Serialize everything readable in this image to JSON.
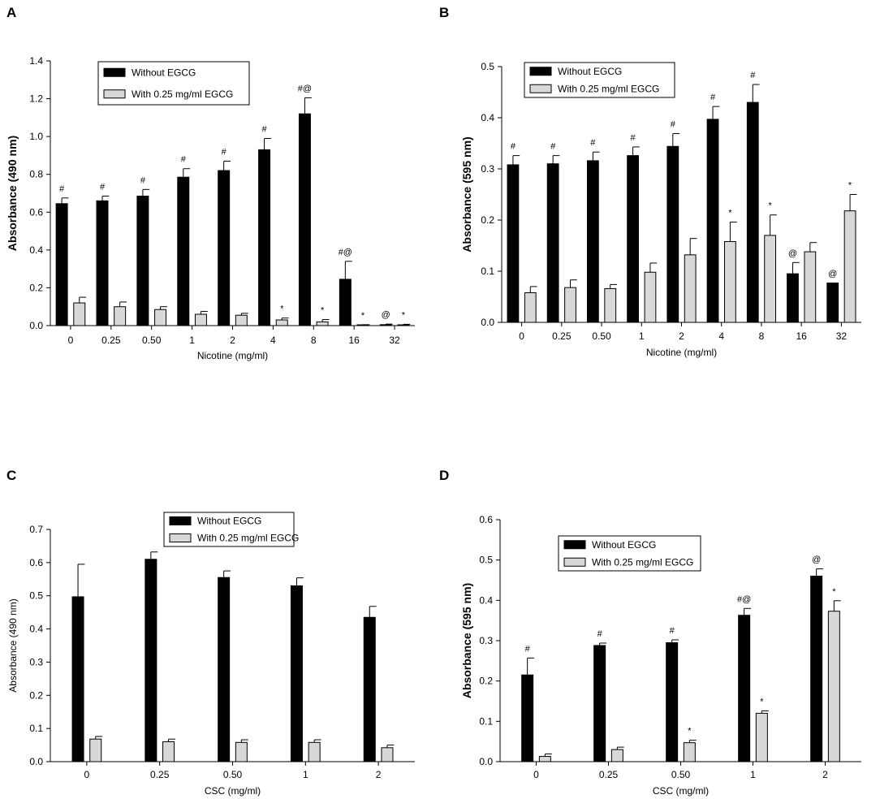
{
  "legend": {
    "without_label": "Without EGCG",
    "with_label": "With 0.25 mg/ml EGCG"
  },
  "colors": {
    "without_fill": "#000000",
    "with_fill": "#d8d8d8",
    "axis": "#000000"
  },
  "chart_data": [
    {
      "panel": "A",
      "type": "bar",
      "ylabel": "Absorbance (490 nm)",
      "xlabel": "Nicotine (mg/ml)",
      "ylim": [
        0,
        1.4
      ],
      "yticks": [
        "0.0",
        "0.2",
        "0.4",
        "0.6",
        "0.8",
        "1.0",
        "1.2",
        "1.4"
      ],
      "categories": [
        "0",
        "0.25",
        "0.50",
        "1",
        "2",
        "4",
        "8",
        "16",
        "32"
      ],
      "legend_position": "top-left",
      "series": [
        {
          "name": "Without EGCG",
          "values": [
            0.645,
            0.66,
            0.685,
            0.785,
            0.82,
            0.93,
            1.12,
            0.245,
            0.005
          ],
          "errors": [
            0.03,
            0.025,
            0.035,
            0.045,
            0.05,
            0.06,
            0.085,
            0.095,
            0.003
          ],
          "annotations": [
            "#",
            "#",
            "#",
            "#",
            "#",
            "#",
            "#@",
            "#@",
            "@"
          ]
        },
        {
          "name": "With 0.25 mg/ml EGCG",
          "values": [
            0.12,
            0.1,
            0.085,
            0.06,
            0.055,
            0.03,
            0.02,
            0.003,
            0.004
          ],
          "errors": [
            0.03,
            0.025,
            0.015,
            0.015,
            0.01,
            0.01,
            0.012,
            0.002,
            0.003
          ],
          "annotations": [
            "",
            "",
            "",
            "",
            "",
            "*",
            "*",
            "*",
            "*"
          ]
        }
      ]
    },
    {
      "panel": "B",
      "type": "bar",
      "ylabel": "Absorbance (595 nm)",
      "xlabel": "Nicotine (mg/ml)",
      "ylim": [
        0,
        0.5
      ],
      "yticks": [
        "0.0",
        "0.1",
        "0.2",
        "0.3",
        "0.4",
        "0.5"
      ],
      "categories": [
        "0",
        "0.25",
        "0.50",
        "1",
        "2",
        "4",
        "8",
        "16",
        "32"
      ],
      "legend_position": "top-left",
      "series": [
        {
          "name": "Without EGCG",
          "values": [
            0.308,
            0.31,
            0.316,
            0.326,
            0.344,
            0.397,
            0.43,
            0.095,
            0.077
          ],
          "errors": [
            0.018,
            0.016,
            0.017,
            0.017,
            0.025,
            0.025,
            0.035,
            0.022,
            0.0
          ],
          "annotations": [
            "#",
            "#",
            "#",
            "#",
            "#",
            "#",
            "#",
            "@",
            "@"
          ]
        },
        {
          "name": "With 0.25 mg/ml EGCG",
          "values": [
            0.058,
            0.068,
            0.066,
            0.098,
            0.132,
            0.158,
            0.17,
            0.138,
            0.218
          ],
          "errors": [
            0.012,
            0.015,
            0.008,
            0.018,
            0.032,
            0.038,
            0.04,
            0.018,
            0.032
          ],
          "annotations": [
            "",
            "",
            "",
            "",
            "",
            "*",
            "*",
            "",
            "*"
          ]
        }
      ]
    },
    {
      "panel": "C",
      "type": "bar",
      "ylabel": "Absorbance (490 nm)",
      "xlabel": "CSC (mg/ml)",
      "ylim": [
        0,
        0.7
      ],
      "yticks": [
        "0.0",
        "0.1",
        "0.2",
        "0.3",
        "0.4",
        "0.5",
        "0.6",
        "0.7"
      ],
      "categories": [
        "0",
        "0.25",
        "0.50",
        "1",
        "2"
      ],
      "legend_position": "top-center",
      "series": [
        {
          "name": "Without EGCG",
          "values": [
            0.497,
            0.61,
            0.555,
            0.53,
            0.435
          ],
          "errors": [
            0.098,
            0.022,
            0.02,
            0.024,
            0.033
          ],
          "annotations": [
            "",
            "",
            "",
            "",
            ""
          ]
        },
        {
          "name": "With 0.25 mg/ml EGCG",
          "values": [
            0.068,
            0.06,
            0.058,
            0.058,
            0.042
          ],
          "errors": [
            0.008,
            0.008,
            0.008,
            0.008,
            0.008
          ],
          "annotations": [
            "",
            "",
            "",
            "",
            ""
          ]
        }
      ]
    },
    {
      "panel": "D",
      "type": "bar",
      "ylabel": "Absorbance (595 nm)",
      "xlabel": "CSC (mg/ml)",
      "ylim": [
        0,
        0.6
      ],
      "yticks": [
        "0.0",
        "0.1",
        "0.2",
        "0.3",
        "0.4",
        "0.5",
        "0.6"
      ],
      "categories": [
        "0",
        "0.25",
        "0.50",
        "1",
        "2"
      ],
      "legend_position": "top-center",
      "series": [
        {
          "name": "Without EGCG",
          "values": [
            0.215,
            0.288,
            0.295,
            0.363,
            0.46
          ],
          "errors": [
            0.042,
            0.006,
            0.007,
            0.017,
            0.018
          ],
          "annotations": [
            "#",
            "#",
            "#",
            "#@",
            "@"
          ]
        },
        {
          "name": "With 0.25 mg/ml EGCG",
          "values": [
            0.013,
            0.03,
            0.047,
            0.12,
            0.373
          ],
          "errors": [
            0.006,
            0.006,
            0.006,
            0.006,
            0.026
          ],
          "annotations": [
            "",
            "",
            "*",
            "*",
            "*"
          ]
        }
      ]
    }
  ]
}
